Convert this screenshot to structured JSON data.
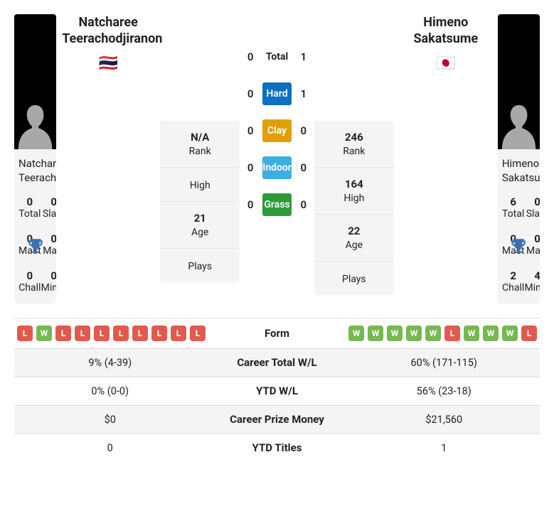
{
  "colors": {
    "hard": "#0d6fbf",
    "clay": "#e0a100",
    "indoor": "#3daee0",
    "grass": "#2e9b3a",
    "win": "#76b852",
    "loss": "#e05b4e",
    "trophy": "#3b6fb3",
    "silhouette": "#a8a8a8",
    "card_bg": "#f4f4f4",
    "row_alt": "#f4f4f4"
  },
  "player1": {
    "name": "Natcharee Teerachodjiranon",
    "flag": "🇹🇭",
    "titles": {
      "total": {
        "val": "0",
        "lbl": "Total"
      },
      "slam": {
        "val": "0",
        "lbl": "Slam"
      },
      "mast": {
        "val": "0",
        "lbl": "Mast"
      },
      "main": {
        "val": "0",
        "lbl": "Main"
      },
      "chall": {
        "val": "0",
        "lbl": "Chall"
      },
      "minor": {
        "val": "0",
        "lbl": "Minor"
      }
    },
    "stats": {
      "rank": {
        "val": "N/A",
        "lbl": "Rank"
      },
      "high": {
        "val": "",
        "lbl": "High"
      },
      "age": {
        "val": "21",
        "lbl": "Age"
      },
      "plays": {
        "val": "",
        "lbl": "Plays"
      }
    }
  },
  "player2": {
    "name": "Himeno Sakatsume",
    "flag": "🇯🇵",
    "titles": {
      "total": {
        "val": "6",
        "lbl": "Total"
      },
      "slam": {
        "val": "0",
        "lbl": "Slam"
      },
      "mast": {
        "val": "0",
        "lbl": "Mast"
      },
      "main": {
        "val": "0",
        "lbl": "Main"
      },
      "chall": {
        "val": "2",
        "lbl": "Chall"
      },
      "minor": {
        "val": "4",
        "lbl": "Minor"
      }
    },
    "stats": {
      "rank": {
        "val": "246",
        "lbl": "Rank"
      },
      "high": {
        "val": "164",
        "lbl": "High"
      },
      "age": {
        "val": "22",
        "lbl": "Age"
      },
      "plays": {
        "val": "",
        "lbl": "Plays"
      }
    }
  },
  "h2h": [
    {
      "p1": "0",
      "label": "Total",
      "p2": "1",
      "color": ""
    },
    {
      "p1": "0",
      "label": "Hard",
      "p2": "1",
      "color": "#0d6fbf"
    },
    {
      "p1": "0",
      "label": "Clay",
      "p2": "0",
      "color": "#e0a100"
    },
    {
      "p1": "0",
      "label": "Indoor",
      "p2": "0",
      "color": "#3daee0"
    },
    {
      "p1": "0",
      "label": "Grass",
      "p2": "0",
      "color": "#2e9b3a"
    }
  ],
  "form": {
    "label": "Form",
    "p1": [
      "L",
      "W",
      "L",
      "L",
      "L",
      "L",
      "L",
      "L",
      "L",
      "L"
    ],
    "p2": [
      "W",
      "W",
      "W",
      "W",
      "W",
      "L",
      "W",
      "W",
      "W",
      "L"
    ]
  },
  "compare": [
    {
      "p1": "9% (4-39)",
      "label": "Career Total W/L",
      "p2": "60% (171-115)"
    },
    {
      "p1": "0% (0-0)",
      "label": "YTD W/L",
      "p2": "56% (23-18)"
    },
    {
      "p1": "$0",
      "label": "Career Prize Money",
      "p2": "$21,560"
    },
    {
      "p1": "0",
      "label": "YTD Titles",
      "p2": "1"
    }
  ]
}
